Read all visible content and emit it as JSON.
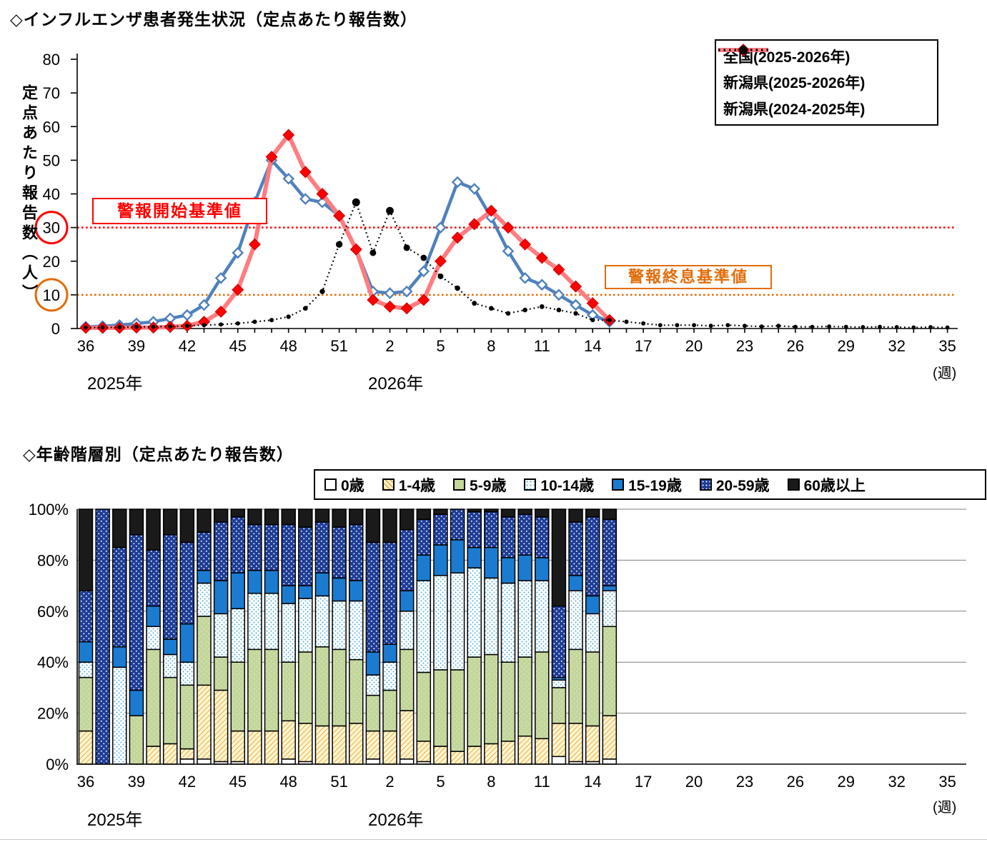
{
  "axis_shared": {
    "year_2025": "2025年",
    "year_2026": "2026年",
    "week_unit": "(週)"
  },
  "chart_data": [
    {
      "type": "line",
      "title": "◇インフルエンザ患者発生状況（定点あたり報告数）",
      "ylabel": "定点あたり報告数（人）",
      "xlabel": "(週)",
      "ylim": [
        0,
        80
      ],
      "yticks": [
        0,
        10,
        20,
        30,
        40,
        50,
        60,
        70,
        80
      ],
      "x_tick_step": 3,
      "x_categories": [
        "36",
        "37",
        "38",
        "39",
        "40",
        "41",
        "42",
        "43",
        "44",
        "45",
        "46",
        "47",
        "48",
        "49",
        "50",
        "51",
        "52",
        "1",
        "2",
        "3",
        "4",
        "5",
        "6",
        "7",
        "8",
        "9",
        "10",
        "11",
        "12",
        "13",
        "14",
        "15",
        "16",
        "17",
        "18",
        "19",
        "20",
        "21",
        "22",
        "23",
        "24",
        "25",
        "26",
        "27",
        "28",
        "29",
        "30",
        "31",
        "32",
        "33",
        "34",
        "35"
      ],
      "annotations": [
        {
          "key": "alert-start",
          "label": "警報開始基準値",
          "value": 30,
          "color": "#FF0000"
        },
        {
          "key": "alert-end",
          "label": "警報終息基準値",
          "value": 10,
          "color": "#E36C09"
        }
      ],
      "legend_position": "top-right",
      "grid": false,
      "series": [
        {
          "key": "zenkoku-2025-2026",
          "name": "全国(2025-2026年)",
          "color": "#4F81BD",
          "marker": "open-diamond",
          "style": "solid",
          "values": [
            0.5,
            0.7,
            1,
            1.5,
            2,
            3,
            4,
            7,
            15,
            22.5,
            37.5,
            50,
            44.5,
            38.5,
            37.5,
            33.5,
            23.5,
            11,
            10.5,
            11,
            17,
            30,
            43.5,
            41.5,
            33,
            23,
            15,
            13,
            10,
            7,
            4,
            2,
            null,
            null,
            null,
            null,
            null,
            null,
            null,
            null,
            null,
            null,
            null,
            null,
            null,
            null,
            null,
            null,
            null,
            null,
            null,
            null
          ]
        },
        {
          "key": "niigata-2025-2026",
          "name": "新潟県(2025-2026年)",
          "color": "#FF7C80",
          "marker_color": "#FF0000",
          "marker": "solid-diamond",
          "style": "solid",
          "values": [
            0.2,
            0.2,
            0.2,
            0.3,
            0.3,
            0.5,
            0.8,
            2,
            5,
            11.5,
            25,
            51,
            57.5,
            46.5,
            40,
            33.5,
            23.5,
            8.5,
            6.5,
            6,
            8.5,
            20,
            27,
            31,
            35,
            30,
            25,
            21,
            17.5,
            12.5,
            7.5,
            2.5,
            null,
            null,
            null,
            null,
            null,
            null,
            null,
            null,
            null,
            null,
            null,
            null,
            null,
            null,
            null,
            null,
            null,
            null,
            null,
            null
          ]
        },
        {
          "key": "niigata-2024-2025",
          "name": "新潟県(2024-2025年)",
          "color": "#000000",
          "marker": "dot",
          "style": "dotted",
          "values": [
            0.3,
            0.3,
            0.4,
            0.5,
            0.5,
            0.6,
            0.8,
            1,
            1.2,
            1.5,
            2,
            2.5,
            3.5,
            6,
            11,
            25,
            37.5,
            22.5,
            35,
            24,
            21,
            15.5,
            12,
            7.5,
            6,
            4.5,
            5.5,
            6.5,
            5.5,
            4.5,
            2.5,
            2.5,
            2,
            1.5,
            1,
            1,
            1,
            0.8,
            1,
            0.8,
            0.6,
            0.8,
            0.5,
            0.5,
            0.6,
            0.5,
            0.4,
            0.5,
            0.4,
            0.3,
            0.4,
            0.3
          ]
        }
      ]
    },
    {
      "type": "bar",
      "subtype": "stacked-100pct",
      "title": "◇年齢階層別（定点あたり報告数）",
      "ylabel": "",
      "xlabel": "(週)",
      "ylim_percent": [
        0,
        100
      ],
      "ytick_labels": [
        "0%",
        "20%",
        "40%",
        "60%",
        "80%",
        "100%"
      ],
      "x_tick_step": 3,
      "x_categories": [
        "36",
        "37",
        "38",
        "39",
        "40",
        "41",
        "42",
        "43",
        "44",
        "45",
        "46",
        "47",
        "48",
        "49",
        "50",
        "51",
        "52",
        "1",
        "2",
        "3",
        "4",
        "5",
        "6",
        "7",
        "8",
        "9",
        "10",
        "11",
        "12",
        "13",
        "14",
        "15",
        "16",
        "17",
        "18",
        "19",
        "20",
        "21",
        "22",
        "23",
        "24",
        "25",
        "26",
        "27",
        "28",
        "29",
        "30",
        "31",
        "32",
        "33",
        "34",
        "35"
      ],
      "bar_weeks": [
        "36",
        "37",
        "38",
        "39",
        "40",
        "41",
        "42",
        "43",
        "44",
        "45",
        "46",
        "47",
        "48",
        "49",
        "50",
        "51",
        "52",
        "1",
        "2",
        "3",
        "4",
        "5",
        "6",
        "7",
        "8",
        "9",
        "10",
        "11",
        "12",
        "13",
        "14",
        "15"
      ],
      "grid": true,
      "legend_position": "top",
      "series": [
        {
          "key": "age-0",
          "name": "0歳",
          "values_percent": [
            0,
            0,
            0,
            0,
            0,
            0,
            2,
            2,
            1,
            1,
            0,
            0,
            2,
            1,
            0,
            0,
            0,
            2,
            0,
            2,
            1,
            0,
            0,
            0,
            0,
            0,
            0,
            0,
            3,
            1,
            1,
            2
          ]
        },
        {
          "key": "age-1-4",
          "name": "1-4歳",
          "values_percent": [
            13,
            0,
            0,
            0,
            7,
            8,
            4,
            29,
            28,
            12,
            13,
            13,
            15,
            15,
            15,
            15,
            16,
            11,
            13,
            19,
            8,
            7,
            5,
            7,
            8,
            9,
            11,
            10,
            13,
            15,
            14,
            17
          ]
        },
        {
          "key": "age-5-9",
          "name": "5-9歳",
          "values_percent": [
            21,
            0,
            0,
            19,
            38,
            26,
            25,
            27,
            13,
            27,
            32,
            32,
            23,
            28,
            31,
            30,
            25,
            14,
            16,
            24,
            27,
            30,
            32,
            35,
            35,
            31,
            31,
            34,
            14,
            29,
            29,
            35
          ]
        },
        {
          "key": "age-10-14",
          "name": "10-14歳",
          "values_percent": [
            6,
            0,
            38,
            0,
            9,
            9,
            9,
            13,
            17,
            21,
            22,
            22,
            23,
            21,
            20,
            19,
            23,
            8,
            11,
            15,
            36,
            37,
            38,
            35,
            30,
            31,
            30,
            28,
            3,
            23,
            15,
            14
          ]
        },
        {
          "key": "age-15-19",
          "name": "15-19歳",
          "values_percent": [
            8,
            0,
            8,
            10,
            8,
            6,
            15,
            5,
            13,
            14,
            9,
            9,
            7,
            5,
            9,
            9,
            8,
            9,
            7,
            8,
            10,
            12,
            13,
            8,
            12,
            10,
            10,
            9,
            1,
            6,
            7,
            2
          ]
        },
        {
          "key": "age-20-59",
          "name": "20-59歳",
          "values_percent": [
            20,
            100,
            39,
            61,
            22,
            41,
            32,
            15,
            23,
            22,
            18,
            18,
            24,
            23,
            20,
            20,
            22,
            43,
            40,
            24,
            14,
            12,
            12,
            14,
            14,
            16,
            16,
            16,
            28,
            21,
            31,
            26
          ]
        },
        {
          "key": "age-60plus",
          "name": "60歳以上",
          "values_percent": [
            32,
            0,
            15,
            10,
            16,
            10,
            13,
            9,
            5,
            3,
            6,
            6,
            6,
            7,
            5,
            7,
            6,
            13,
            13,
            8,
            4,
            2,
            0,
            1,
            1,
            3,
            2,
            3,
            38,
            5,
            3,
            4
          ]
        }
      ]
    }
  ]
}
